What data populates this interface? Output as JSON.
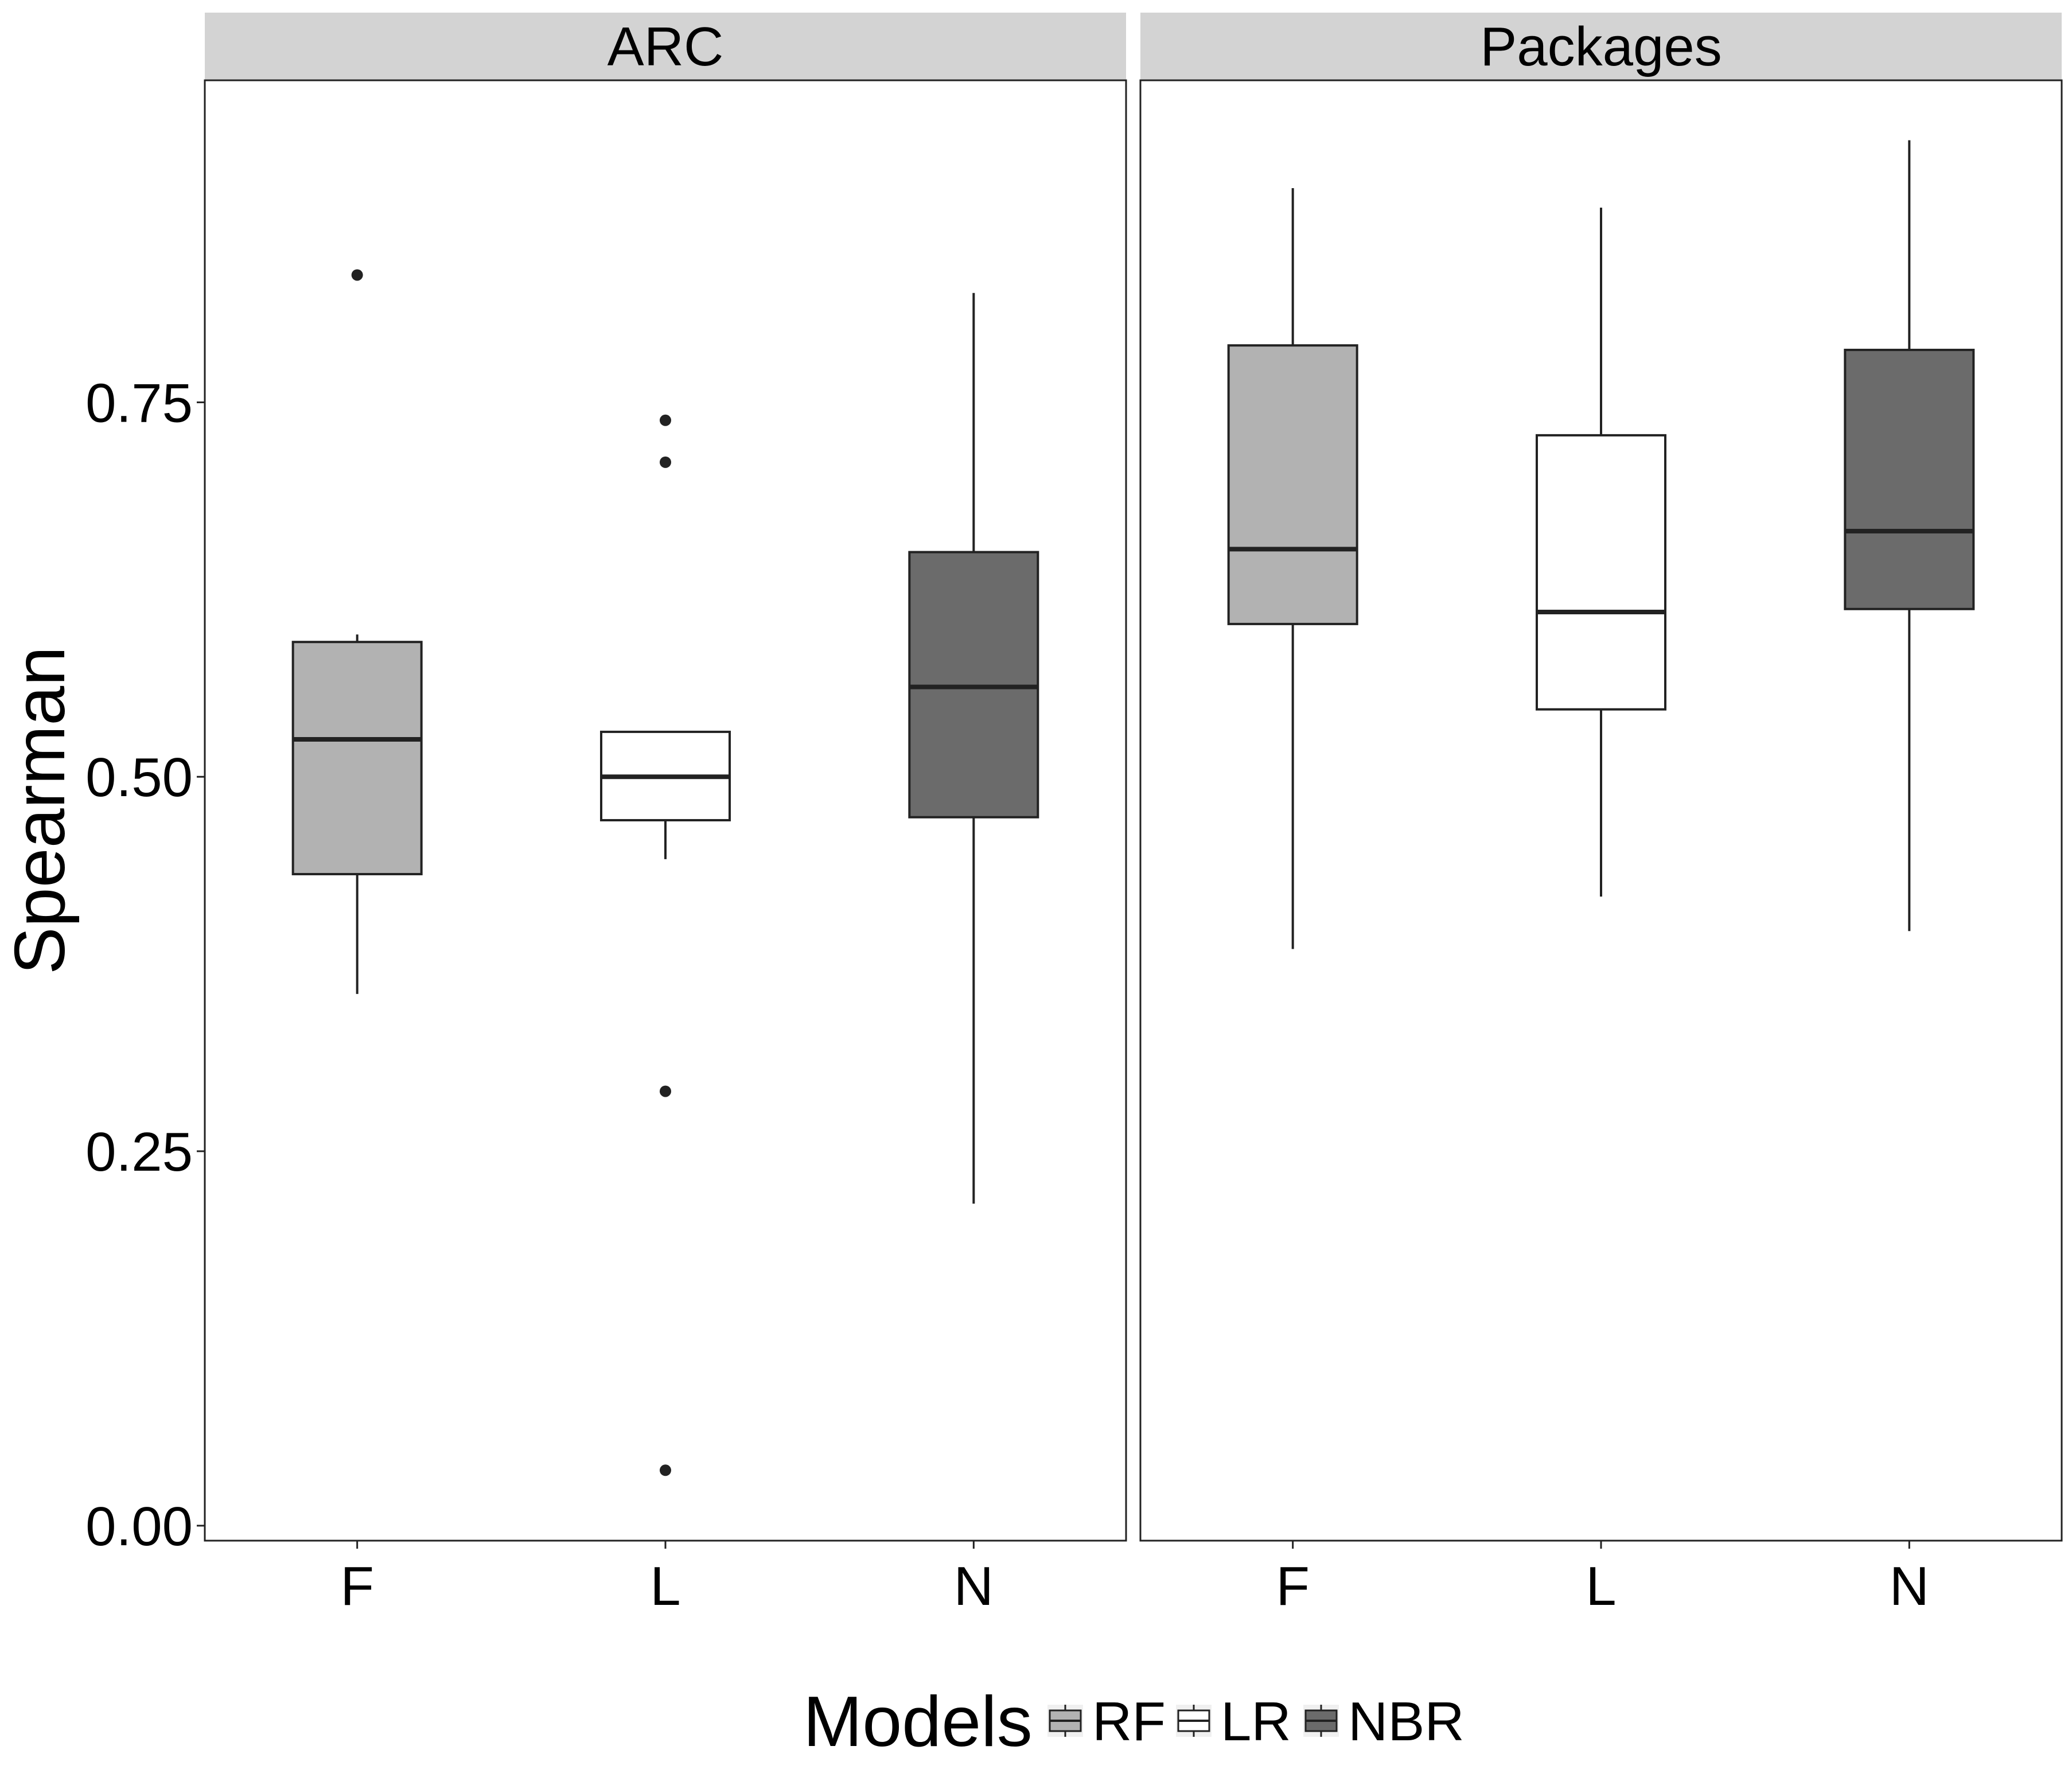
{
  "chart_data": {
    "type": "boxplot",
    "ylabel": "Spearman",
    "ylim": [
      -0.01,
      0.965
    ],
    "y_ticks": [
      0.0,
      0.25,
      0.5,
      0.75
    ],
    "y_tick_labels": [
      "0.00",
      "0.25",
      "0.50",
      "0.75"
    ],
    "categories": [
      "F",
      "L",
      "N"
    ],
    "grid": false,
    "legend": {
      "position": "bottom",
      "title": "Models",
      "entries": [
        {
          "label": "RF",
          "color": "#b2b2b2"
        },
        {
          "label": "LR",
          "color": "#ffffff"
        },
        {
          "label": "NBR",
          "color": "#6b6b6b"
        }
      ]
    },
    "panels": [
      {
        "title": "ARC",
        "boxes": [
          {
            "category": "F",
            "model": "RF",
            "whisker_low": 0.355,
            "q1": 0.435,
            "median": 0.525,
            "q3": 0.59,
            "whisker_high": 0.595,
            "outliers": [
              0.835
            ]
          },
          {
            "category": "L",
            "model": "LR",
            "whisker_low": 0.445,
            "q1": 0.471,
            "median": 0.5,
            "q3": 0.53,
            "whisker_high": 0.53,
            "outliers": [
              0.738,
              0.71,
              0.29,
              0.037
            ]
          },
          {
            "category": "N",
            "model": "NBR",
            "whisker_low": 0.215,
            "q1": 0.473,
            "median": 0.56,
            "q3": 0.65,
            "whisker_high": 0.823,
            "outliers": []
          }
        ]
      },
      {
        "title": "Packages",
        "boxes": [
          {
            "category": "F",
            "model": "RF",
            "whisker_low": 0.385,
            "q1": 0.602,
            "median": 0.652,
            "q3": 0.788,
            "whisker_high": 0.893,
            "outliers": []
          },
          {
            "category": "L",
            "model": "LR",
            "whisker_low": 0.42,
            "q1": 0.545,
            "median": 0.61,
            "q3": 0.728,
            "whisker_high": 0.88,
            "outliers": []
          },
          {
            "category": "N",
            "model": "NBR",
            "whisker_low": 0.397,
            "q1": 0.612,
            "median": 0.664,
            "q3": 0.785,
            "whisker_high": 0.925,
            "outliers": []
          }
        ]
      }
    ]
  }
}
